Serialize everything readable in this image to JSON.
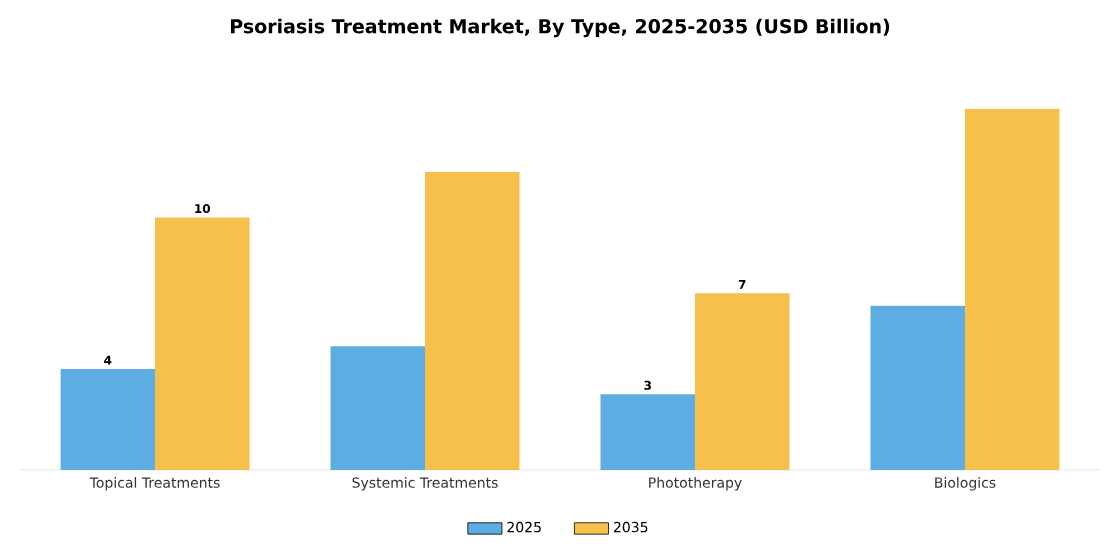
{
  "chart_data": {
    "type": "bar",
    "title": "Psoriasis Treatment Market, By Type, 2025-2035 (USD Billion)",
    "categories": [
      "Topical Treatments",
      "Systemic Treatments",
      "Phototherapy",
      "Biologics"
    ],
    "series": [
      {
        "name": "2025",
        "color": "#5dade2",
        "values": [
          4,
          4.9,
          3,
          6.5
        ],
        "value_labels": [
          "4",
          null,
          "3",
          null
        ]
      },
      {
        "name": "2035",
        "color": "#f5c14b",
        "values": [
          10,
          11.8,
          7,
          14.3
        ],
        "value_labels": [
          "10",
          null,
          "7",
          null
        ]
      }
    ],
    "legend": "bottom"
  }
}
